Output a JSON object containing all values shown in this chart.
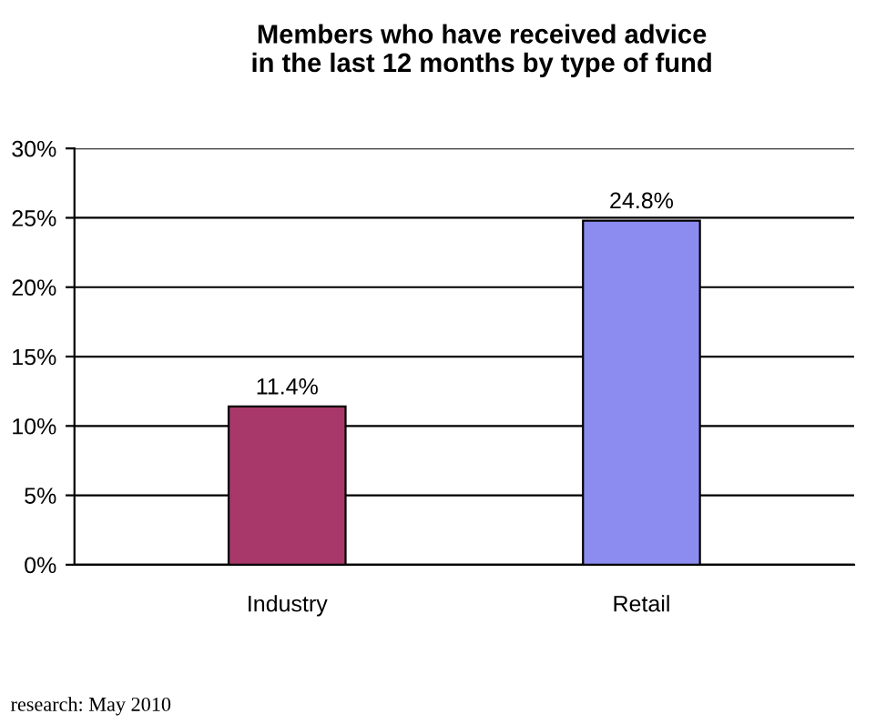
{
  "chart_data": {
    "type": "bar",
    "title": "Members who have received advice\nin the last 12 months by type of fund",
    "categories": [
      "Industry",
      "Retail"
    ],
    "values": [
      11.4,
      24.8
    ],
    "colors": [
      "#a8386a",
      "#8c8cf0"
    ],
    "value_labels": [
      "11.4%",
      "24.8%"
    ],
    "ylim": [
      0,
      30
    ],
    "yticks": [
      {
        "value": 0,
        "label": "0%"
      },
      {
        "value": 5,
        "label": "5%"
      },
      {
        "value": 10,
        "label": "10%"
      },
      {
        "value": 15,
        "label": "15%"
      },
      {
        "value": 20,
        "label": "20%"
      },
      {
        "value": 25,
        "label": "25%"
      },
      {
        "value": 30,
        "label": "30%"
      }
    ],
    "grid": "y",
    "annotations": [
      "research: May 2010"
    ]
  }
}
